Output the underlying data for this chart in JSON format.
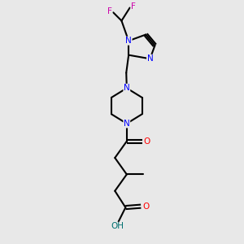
{
  "bg_color": "#e8e8e8",
  "bond_color": "#000000",
  "N_color": "#0000ff",
  "O_color": "#ff0000",
  "F_color": "#cc00aa",
  "H_color": "#007070",
  "line_width": 1.5,
  "figsize": [
    3.0,
    3.0
  ],
  "dpi": 100,
  "xlim": [
    0,
    10
  ],
  "ylim": [
    0,
    10
  ]
}
